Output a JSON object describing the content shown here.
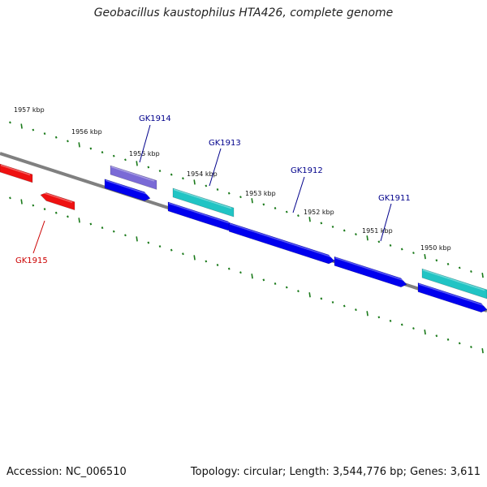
{
  "title": "Geobacillus kaustophilus HTA426, complete genome",
  "footer": {
    "accession": "Accession: NC_006510",
    "summary": "Topology: circular; Length: 3,544,776 bp; Genes: 3,611"
  },
  "colors": {
    "backbone": "#808080",
    "tick": "#1a7a1a",
    "gene_blue": "#0000ee",
    "gene_cyan": "#21c4c4",
    "gene_red": "#ee1111",
    "gene_purple": "#7a6ad6",
    "label_blue": "#00008b",
    "label_red": "#cc0000"
  },
  "scale_labels": [
    "1957 kbp",
    "1956 kbp",
    "1955 kbp",
    "1954 kbp",
    "1953 kbp",
    "1952 kbp",
    "1951 kbp",
    "1950 kbp"
  ],
  "genes": [
    {
      "name": "GK1915",
      "color": "gene_red",
      "label_color": "label_red"
    },
    {
      "name": "GK1914",
      "color": "gene_purple",
      "label_color": "label_blue"
    },
    {
      "name": "GK1913",
      "color": "gene_cyan",
      "label_color": "label_blue"
    },
    {
      "name": "GK1912",
      "color": "gene_blue",
      "label_color": "label_blue"
    },
    {
      "name": "GK1911",
      "color": "gene_blue",
      "label_color": "label_blue"
    }
  ]
}
